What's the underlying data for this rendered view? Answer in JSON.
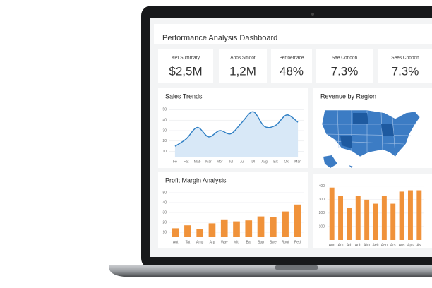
{
  "header": {
    "title": "Performance Analysis Dashboard"
  },
  "kpis": [
    {
      "label": "KPI Summary",
      "value": "$2,5M",
      "color": "#1d6b45"
    },
    {
      "label": "Aoos Smoot",
      "value": "1,2M",
      "color": "#1d5a40"
    },
    {
      "label": "Perfoemace",
      "value": "48%",
      "color": "#1d6b45"
    },
    {
      "label": "Sae Conoon",
      "value": "7.3%",
      "color": "#1d5a40"
    },
    {
      "label": "Sees Coooon",
      "value": "7.3%",
      "color": "#444444"
    }
  ],
  "sales_trends": {
    "type": "line",
    "title": "Sales Trends",
    "categories": [
      "Fe",
      "Fat",
      "Mab",
      "Mar",
      "Mor",
      "Jul",
      "Jul",
      "Dl",
      "Avg",
      "Ert",
      "Okl",
      "Man"
    ],
    "values": [
      15,
      22,
      33,
      24,
      30,
      27,
      38,
      48,
      34,
      35,
      45,
      38
    ],
    "color": "#2f7fc4",
    "ylim": [
      5,
      55
    ],
    "yticks": [
      10,
      20,
      30,
      40,
      50
    ],
    "grid": true
  },
  "revenue_by_region": {
    "title": "Revenue by Region"
  },
  "profit_margin": {
    "type": "bar",
    "title": "Profit Margin Analysis",
    "categories": [
      "Aut",
      "Tat",
      "Amp",
      "Arp",
      "Way",
      "Mitt",
      "Bat",
      "Spp",
      "Swe",
      "Rout",
      "Ped"
    ],
    "values": [
      14,
      17,
      13,
      19,
      23,
      21,
      22,
      26,
      25,
      31,
      38
    ],
    "color": "#f0923a",
    "ylim": [
      5,
      55
    ],
    "yticks": [
      10,
      20,
      30,
      40,
      50
    ],
    "grid": true
  },
  "region_bars": {
    "type": "bar",
    "categories": [
      "Aon",
      "Arh",
      "Arb",
      "Aob",
      "Abb",
      "Aeb",
      "Aen",
      "Ars",
      "Ans",
      "Aps",
      "Asl"
    ],
    "values": [
      390,
      330,
      240,
      330,
      300,
      270,
      330,
      270,
      360,
      370,
      370
    ],
    "color": "#f0923a",
    "ylim": [
      0,
      420
    ],
    "yticks": [
      100,
      200,
      300,
      400
    ],
    "grid": true
  }
}
